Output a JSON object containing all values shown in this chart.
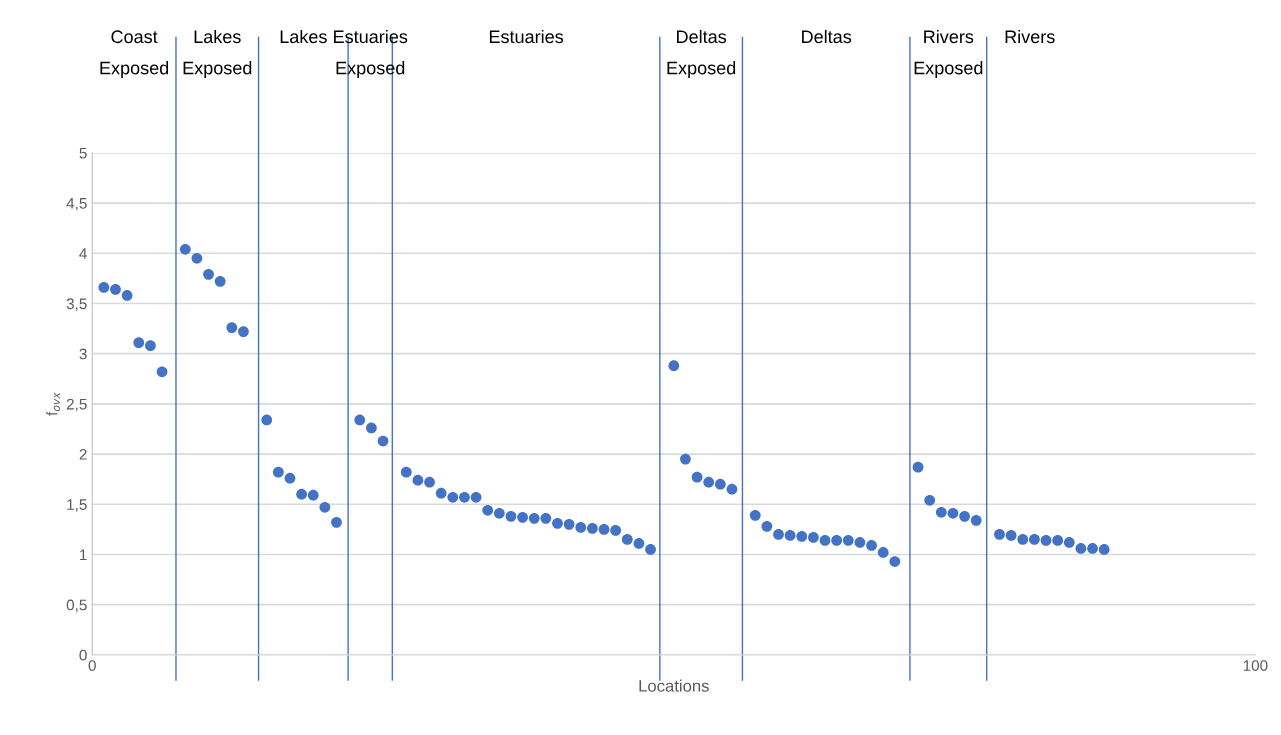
{
  "chart_data": {
    "type": "scatter",
    "xlabel": "Locations",
    "ylabel": "f$_{ovx}$",
    "x": [
      1,
      2,
      3,
      4,
      5,
      6,
      8,
      9,
      10,
      11,
      12,
      13,
      15,
      16,
      17,
      18,
      19,
      20,
      21,
      23,
      24,
      25,
      27,
      28,
      29,
      30,
      31,
      32,
      33,
      34,
      35,
      36,
      37,
      38,
      39,
      40,
      41,
      42,
      43,
      44,
      45,
      46,
      47,
      48,
      50,
      51,
      52,
      53,
      54,
      55,
      57,
      58,
      59,
      60,
      61,
      62,
      63,
      64,
      65,
      66,
      67,
      68,
      69,
      71,
      72,
      73,
      74,
      75,
      76,
      78,
      79,
      80,
      81,
      82,
      83,
      84,
      85,
      86,
      87
    ],
    "series": [
      {
        "color": "#4472c4",
        "values": [
          3.66,
          3.64,
          3.58,
          3.11,
          3.08,
          2.82,
          4.04,
          3.95,
          3.79,
          3.72,
          3.26,
          3.22,
          2.34,
          1.82,
          1.76,
          1.6,
          1.59,
          1.47,
          1.32,
          2.34,
          2.26,
          2.13,
          1.82,
          1.74,
          1.72,
          1.61,
          1.57,
          1.57,
          1.57,
          1.44,
          1.41,
          1.38,
          1.37,
          1.36,
          1.36,
          1.31,
          1.3,
          1.27,
          1.26,
          1.25,
          1.24,
          1.15,
          1.11,
          1.05,
          2.88,
          1.95,
          1.77,
          1.72,
          1.7,
          1.65,
          1.39,
          1.28,
          1.2,
          1.19,
          1.18,
          1.17,
          1.14,
          1.14,
          1.14,
          1.12,
          1.09,
          1.02,
          0.93,
          1.87,
          1.54,
          1.42,
          1.41,
          1.38,
          1.34,
          1.2,
          1.19,
          1.15,
          1.15,
          1.14,
          1.14,
          1.12,
          1.06,
          1.06,
          1.05
        ]
      }
    ],
    "xlim": [
      0,
      100
    ],
    "xticks": [
      0,
      100
    ],
    "ylim": [
      0,
      5
    ],
    "yticks": [
      0,
      {
        "value": 0.5,
        "label": "0,5"
      },
      1,
      {
        "value": 1.5,
        "label": "1,5"
      },
      2,
      {
        "value": 2.5,
        "label": "2,5"
      },
      3,
      {
        "value": 3.5,
        "label": "3,5"
      },
      4,
      {
        "value": 4.5,
        "label": "4,5"
      },
      5
    ],
    "grid": "y",
    "marker": "circle",
    "ref_lines": [
      {
        "axis": "x",
        "value": 7.2,
        "color": "#4472c4"
      },
      {
        "axis": "x",
        "value": 14.3,
        "color": "#4472c4"
      },
      {
        "axis": "x",
        "value": 22.0,
        "color": "#4472c4"
      },
      {
        "axis": "x",
        "value": 25.8,
        "color": "#4472c4"
      },
      {
        "axis": "x",
        "value": 48.8,
        "color": "#4472c4"
      },
      {
        "axis": "x",
        "value": 55.9,
        "color": "#4472c4"
      },
      {
        "axis": "x",
        "value": 70.3,
        "color": "#4472c4"
      },
      {
        "axis": "x",
        "value": 76.9,
        "color": "#4472c4"
      }
    ],
    "annotations": [
      "Coast\nExposed",
      "Lakes\nExposed",
      "Lakes",
      "Estuaries\nExposed",
      "Estuaries",
      "Deltas\nExposed",
      "Deltas",
      "Rivers\nExposed",
      "Rivers"
    ]
  }
}
